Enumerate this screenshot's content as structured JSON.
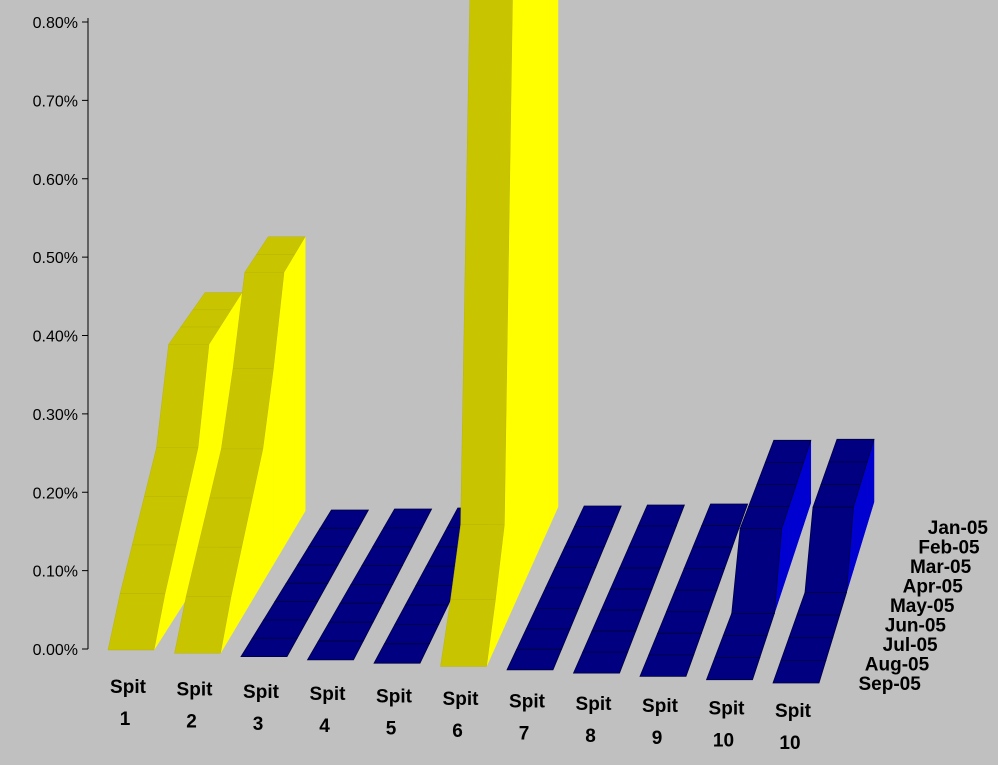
{
  "chart_data": {
    "type": "area",
    "title": "",
    "xlabel": "",
    "ylabel": "",
    "ylim": [
      0,
      0.008
    ],
    "y_ticks": [
      "0.00%",
      "0.10%",
      "0.20%",
      "0.30%",
      "0.40%",
      "0.50%",
      "0.60%",
      "0.70%",
      "0.80%"
    ],
    "categories": [
      "Spit 1",
      "Spit 2",
      "Spit 3",
      "Spit 4",
      "Spit 5",
      "Spit 6",
      "Spit 7",
      "Spit 8",
      "Spit 9",
      "Spit 10",
      "Spit 10"
    ],
    "series_names": [
      "Jan-05",
      "Feb-05",
      "Mar-05",
      "Apr-05",
      "May-05",
      "Jun-05",
      "Jul-05",
      "Aug-05",
      "Sep-05"
    ],
    "values": [
      [
        0.0028,
        0.0028,
        0.0028,
        0.0028,
        0.0017,
        0.0013,
        0.0009,
        0.0005,
        0.0
      ],
      [
        0.0035,
        0.0035,
        0.0035,
        0.0025,
        0.0017,
        0.0013,
        0.0009,
        0.0005,
        0.0
      ],
      [
        0,
        0,
        0,
        0,
        0,
        0,
        0,
        0,
        0
      ],
      [
        0,
        0,
        0,
        0,
        0,
        0,
        0,
        0,
        0
      ],
      [
        0,
        0,
        0,
        0,
        0,
        0,
        0,
        0,
        0
      ],
      [
        0.0084,
        0.0084,
        0.0084,
        0.0084,
        0.0084,
        0.0084,
        0.0013,
        0.0006,
        0.0
      ],
      [
        0,
        0,
        0,
        0,
        0,
        0,
        0,
        0,
        0
      ],
      [
        0,
        0,
        0,
        0,
        0,
        0,
        0,
        0,
        0
      ],
      [
        0,
        0,
        0,
        0,
        0,
        0,
        0,
        0,
        0
      ],
      [
        0.0008,
        0.0008,
        0.0008,
        0.0008,
        0.0008,
        0.0,
        0.0,
        0.0,
        0.0
      ],
      [
        0.0008,
        0.0008,
        0.0008,
        0.0008,
        0.0,
        0.0,
        0.0,
        0.0,
        0.0
      ]
    ],
    "colors": [
      "#e3e100",
      "#e3e100",
      "#000080",
      "#000080",
      "#000080",
      "#e3e100",
      "#000080",
      "#000080",
      "#000080",
      "#000080",
      "#000080"
    ],
    "grid": false,
    "legend": "none"
  }
}
